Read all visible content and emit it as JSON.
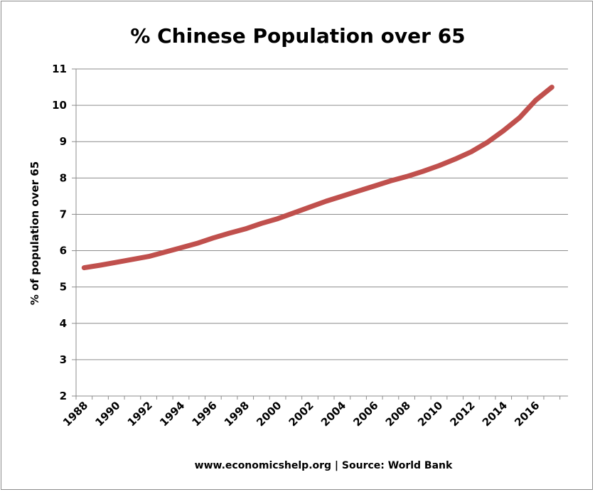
{
  "chart_data": {
    "type": "line",
    "title": "% Chinese Population over 65",
    "xlabel": "",
    "ylabel": "% of population over 65",
    "footer": "www.economicshelp.org | Source: World Bank",
    "ylim": [
      2,
      11
    ],
    "yticks": [
      2,
      3,
      4,
      5,
      6,
      7,
      8,
      9,
      10,
      11
    ],
    "xticks": [
      1988,
      1990,
      1992,
      1994,
      1996,
      1998,
      2000,
      2002,
      2004,
      2006,
      2008,
      2010,
      2012,
      2014,
      2016
    ],
    "grid": true,
    "legend": "none",
    "line_color": "#c0504d",
    "x": [
      1988,
      1989,
      1990,
      1991,
      1992,
      1993,
      1994,
      1995,
      1996,
      1997,
      1998,
      1999,
      2000,
      2001,
      2002,
      2003,
      2004,
      2005,
      2006,
      2007,
      2008,
      2009,
      2010,
      2011,
      2012,
      2013,
      2014,
      2015,
      2016,
      2017
    ],
    "series": [
      {
        "values": [
          5.53,
          5.6,
          5.68,
          5.76,
          5.84,
          5.96,
          6.08,
          6.2,
          6.35,
          6.48,
          6.6,
          6.75,
          6.88,
          7.04,
          7.2,
          7.36,
          7.5,
          7.64,
          7.78,
          7.92,
          8.04,
          8.18,
          8.34,
          8.52,
          8.72,
          8.98,
          9.3,
          9.66,
          10.14,
          10.5
        ]
      }
    ]
  }
}
